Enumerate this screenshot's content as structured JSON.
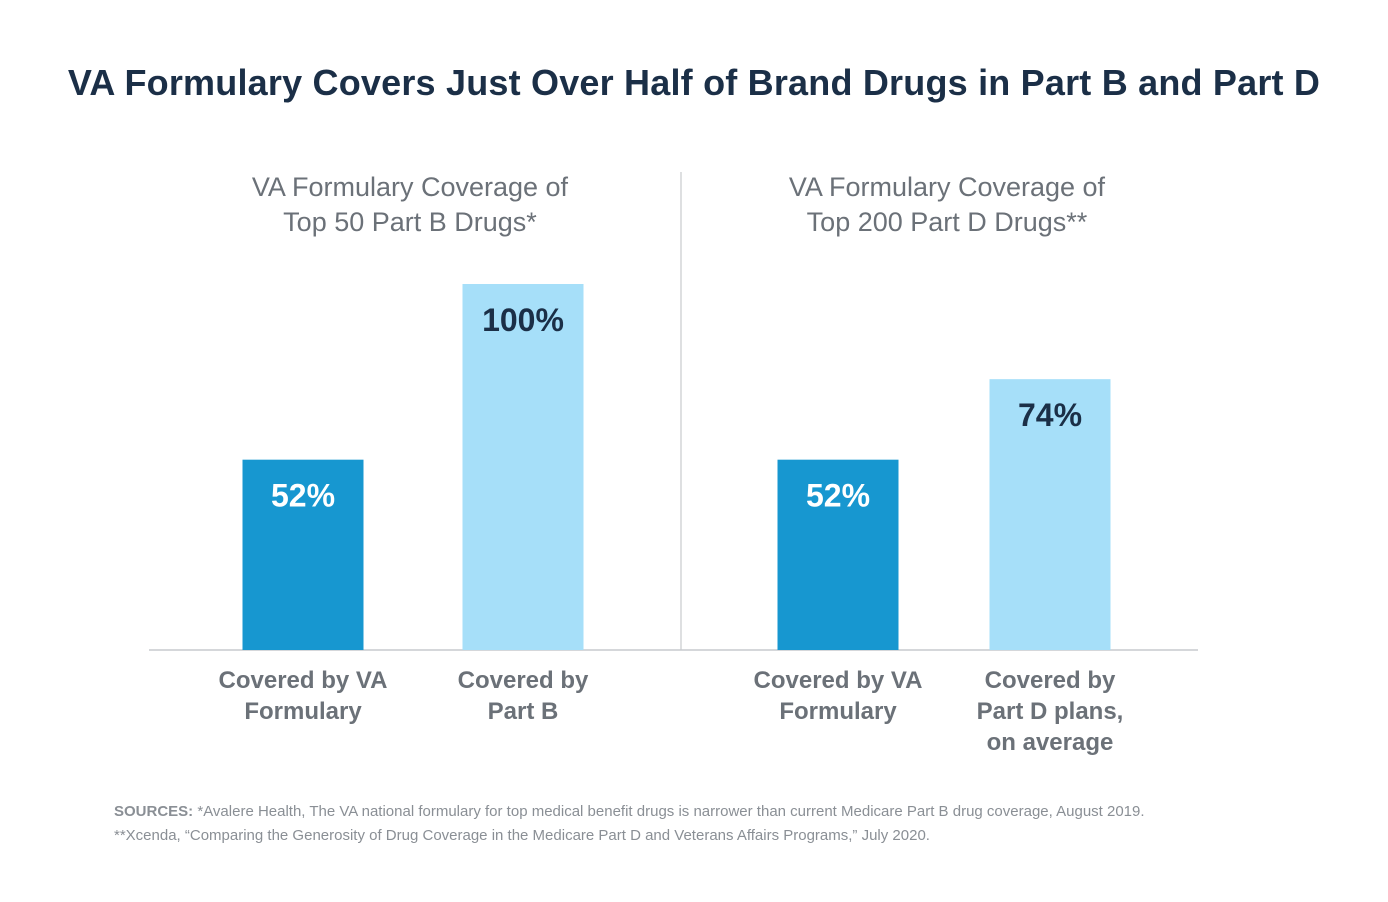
{
  "title": "VA Formulary Covers Just Over Half of Brand Drugs in Part B and Part D",
  "colors": {
    "va_bar": "#1797d0",
    "comparison_bar": "#a6dff9",
    "title": "#1b2f47",
    "subtitle": "#6b7178",
    "value_on_dark": "#ffffff",
    "value_on_light": "#1b2f47",
    "axis": "#c7cacd"
  },
  "chart_data": [
    {
      "type": "bar",
      "title": [
        "VA Formulary Coverage of",
        "Top 50 Part B Drugs*"
      ],
      "categories": [
        [
          "Covered by VA",
          "Formulary"
        ],
        [
          "Covered by",
          "Part B"
        ]
      ],
      "values": [
        52,
        100
      ],
      "data_labels": [
        "52%",
        "100%"
      ],
      "ylim": [
        0,
        100
      ],
      "grid": false
    },
    {
      "type": "bar",
      "title": [
        "VA Formulary Coverage of",
        "Top 200 Part D Drugs**"
      ],
      "categories": [
        [
          "Covered by VA",
          "Formulary"
        ],
        [
          "Covered by",
          "Part D plans,",
          "on average"
        ]
      ],
      "values": [
        52,
        74
      ],
      "data_labels": [
        "52%",
        "74%"
      ],
      "ylim": [
        0,
        100
      ],
      "grid": false
    }
  ],
  "sources": {
    "lead": "SOURCES:",
    "line1": " *Avalere Health, The VA national formulary for top medical benefit drugs is narrower than current Medicare Part B drug coverage, August 2019.",
    "line2": "**Xcenda, “Comparing the Generosity of Drug Coverage in the Medicare Part D and Veterans Affairs Programs,” July 2020."
  }
}
